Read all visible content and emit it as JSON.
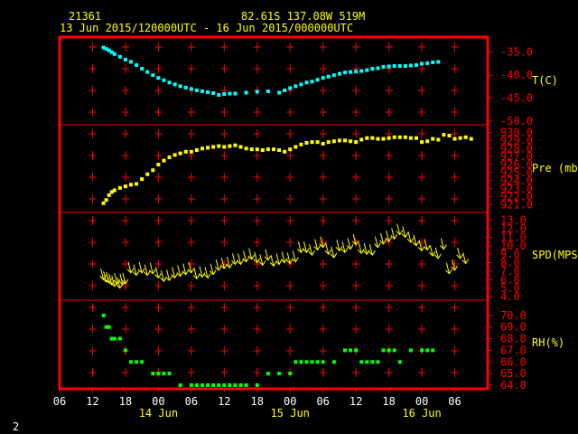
{
  "header": {
    "station_id": "21361",
    "location": "82.61S  137.08W   519M",
    "period": "13 Jun 2015/120000UTC - 16 Jun 2015/000000UTC"
  },
  "footer_number": "2",
  "colors": {
    "frame": "#ff0000",
    "temperature": "#00ffff",
    "pressure": "#ffff00",
    "wind": "#ffff00",
    "humidity": "#00ff00",
    "labels": "#ffff00",
    "axis_labels": "#ff0000"
  },
  "chart_data": {
    "type": "scatter",
    "x_axis": {
      "unit": "hours from 13 Jun 2015 06 UTC",
      "range": [
        0,
        78
      ],
      "tick_labels": [
        "06",
        "12",
        "18",
        "00",
        "06",
        "12",
        "18",
        "00",
        "06",
        "12",
        "18",
        "00",
        "06"
      ],
      "date_labels": [
        {
          "label": "14 Jun",
          "at_hour": 18
        },
        {
          "label": "15 Jun",
          "at_hour": 42
        },
        {
          "label": "16 Jun",
          "at_hour": 66
        }
      ]
    },
    "panels": [
      {
        "name": "temperature",
        "label": "T(C)",
        "range": [
          -50,
          -32.5
        ],
        "ticks": [
          "-35.0",
          "-40.0",
          "-45.0",
          "-50.0"
        ],
        "tick_values": [
          -35,
          -40,
          -45,
          -50
        ],
        "points": [
          [
            8,
            -34
          ],
          [
            8.5,
            -34.3
          ],
          [
            9,
            -34.6
          ],
          [
            9.5,
            -35
          ],
          [
            10,
            -35.4
          ],
          [
            11,
            -36
          ],
          [
            12,
            -36.6
          ],
          [
            13,
            -37.1
          ],
          [
            14,
            -37.8
          ],
          [
            15,
            -38.6
          ],
          [
            16,
            -39.3
          ],
          [
            17,
            -40
          ],
          [
            18,
            -40.6
          ],
          [
            19,
            -41.1
          ],
          [
            20,
            -41.6
          ],
          [
            21,
            -42
          ],
          [
            22,
            -42.4
          ],
          [
            23,
            -42.7
          ],
          [
            24,
            -43
          ],
          [
            25,
            -43.3
          ],
          [
            26,
            -43.5
          ],
          [
            27,
            -43.7
          ],
          [
            28,
            -43.9
          ],
          [
            29,
            -44.3
          ],
          [
            30,
            -44.1
          ],
          [
            31,
            -44
          ],
          [
            32,
            -44
          ],
          [
            34,
            -43.8
          ],
          [
            36,
            -43.6
          ],
          [
            38,
            -43.5
          ],
          [
            40,
            -43.8
          ],
          [
            41,
            -43.3
          ],
          [
            42,
            -42.8
          ],
          [
            43,
            -42.4
          ],
          [
            44,
            -42
          ],
          [
            45,
            -41.6
          ],
          [
            46,
            -41.4
          ],
          [
            47,
            -41
          ],
          [
            48,
            -40.6
          ],
          [
            49,
            -40.3
          ],
          [
            50,
            -40
          ],
          [
            51,
            -39.7
          ],
          [
            52,
            -39.4
          ],
          [
            53,
            -39.3
          ],
          [
            54,
            -39.2
          ],
          [
            55,
            -39.1
          ],
          [
            56,
            -38.9
          ],
          [
            57,
            -38.6
          ],
          [
            58,
            -38.5
          ],
          [
            59,
            -38.2
          ],
          [
            60,
            -38.1
          ],
          [
            61,
            -38
          ],
          [
            62,
            -38
          ],
          [
            63,
            -38
          ],
          [
            64,
            -37.9
          ],
          [
            65,
            -37.8
          ],
          [
            66,
            -37.5
          ],
          [
            67,
            -37.4
          ],
          [
            68,
            -37.2
          ],
          [
            69,
            -37.1
          ]
        ]
      },
      {
        "name": "pressure",
        "label": "Pre (mb)",
        "range": [
          920.5,
          930.5
        ],
        "ticks": [
          "930.0",
          "929.0",
          "928.0",
          "927.0",
          "926.0",
          "925.0",
          "924.0",
          "923.0",
          "922.0",
          "921.0"
        ],
        "tick_values": [
          930,
          929,
          928,
          927,
          926,
          925,
          924,
          923,
          922,
          921
        ],
        "points": [
          [
            8,
            921.2
          ],
          [
            8.5,
            921.6
          ],
          [
            9,
            922.2
          ],
          [
            9.5,
            922.6
          ],
          [
            10,
            922.8
          ],
          [
            11,
            923.1
          ],
          [
            12,
            923.3
          ],
          [
            13,
            923.5
          ],
          [
            14,
            923.6
          ],
          [
            15,
            924.2
          ],
          [
            16,
            924.8
          ],
          [
            17,
            925.3
          ],
          [
            18,
            926.0
          ],
          [
            19,
            926.5
          ],
          [
            20,
            926.9
          ],
          [
            21,
            927.2
          ],
          [
            22,
            927.4
          ],
          [
            23,
            927.6
          ],
          [
            24,
            927.6
          ],
          [
            25,
            927.8
          ],
          [
            26,
            928.0
          ],
          [
            27,
            928.1
          ],
          [
            28,
            928.2
          ],
          [
            29,
            928.3
          ],
          [
            30,
            928.2
          ],
          [
            31,
            928.3
          ],
          [
            32,
            928.4
          ],
          [
            33,
            928.2
          ],
          [
            34,
            928.0
          ],
          [
            35,
            927.9
          ],
          [
            36,
            927.9
          ],
          [
            37,
            927.8
          ],
          [
            38,
            927.9
          ],
          [
            39,
            927.9
          ],
          [
            40,
            927.8
          ],
          [
            41,
            927.6
          ],
          [
            42,
            927.9
          ],
          [
            43,
            928.2
          ],
          [
            44,
            928.5
          ],
          [
            45,
            928.7
          ],
          [
            46,
            928.8
          ],
          [
            47,
            928.8
          ],
          [
            48,
            928.6
          ],
          [
            49,
            928.8
          ],
          [
            50,
            928.9
          ],
          [
            51,
            929.0
          ],
          [
            52,
            929.0
          ],
          [
            53,
            928.9
          ],
          [
            54,
            928.8
          ],
          [
            55,
            929.1
          ],
          [
            56,
            929.3
          ],
          [
            57,
            929.3
          ],
          [
            58,
            929.2
          ],
          [
            59,
            929.2
          ],
          [
            60,
            929.3
          ],
          [
            61,
            929.4
          ],
          [
            62,
            929.4
          ],
          [
            63,
            929.4
          ],
          [
            64,
            929.3
          ],
          [
            65,
            929.3
          ],
          [
            66,
            928.8
          ],
          [
            67,
            928.9
          ],
          [
            68,
            929.2
          ],
          [
            69,
            929.1
          ],
          [
            70,
            929.7
          ],
          [
            71,
            929.6
          ],
          [
            72,
            929.2
          ],
          [
            73,
            929.3
          ],
          [
            74,
            929.4
          ],
          [
            75,
            929.2
          ]
        ]
      },
      {
        "name": "wind_speed",
        "label": "SPD(MPS)",
        "range": [
          4,
          13.5
        ],
        "ticks": [
          "13.0",
          "12.0",
          "11.0",
          "10.0",
          "9.0",
          "8.0",
          "7.0",
          "6.0",
          "5.0",
          "4.0"
        ],
        "tick_values": [
          13,
          12,
          11,
          10,
          9,
          8,
          7,
          6,
          5,
          4
        ],
        "points": [
          [
            8,
            6
          ],
          [
            8.5,
            5.7
          ],
          [
            9,
            5.6
          ],
          [
            9.5,
            5.4
          ],
          [
            10,
            5.2
          ],
          [
            10.5,
            5.5
          ],
          [
            11,
            5.0
          ],
          [
            11.5,
            5.4
          ],
          [
            12,
            5.5
          ],
          [
            13,
            6.8
          ],
          [
            14,
            6.5
          ],
          [
            15,
            6.8
          ],
          [
            16,
            6.5
          ],
          [
            17,
            6.7
          ],
          [
            18,
            6.2
          ],
          [
            19,
            5.8
          ],
          [
            20,
            5.9
          ],
          [
            21,
            6.2
          ],
          [
            22,
            6.4
          ],
          [
            23,
            6.6
          ],
          [
            24,
            6.8
          ],
          [
            25,
            6.1
          ],
          [
            26,
            6.3
          ],
          [
            27,
            6.2
          ],
          [
            28,
            6.6
          ],
          [
            29,
            7.1
          ],
          [
            30,
            7.3
          ],
          [
            31,
            7.4
          ],
          [
            32,
            7.8
          ],
          [
            33,
            7.8
          ],
          [
            34,
            8.1
          ],
          [
            35,
            8.4
          ],
          [
            36,
            8.0
          ],
          [
            37,
            7.7
          ],
          [
            38,
            8.3
          ],
          [
            39,
            7.6
          ],
          [
            40,
            7.8
          ],
          [
            41,
            8.0
          ],
          [
            42,
            7.9
          ],
          [
            43,
            8.1
          ],
          [
            44,
            9.2
          ],
          [
            45,
            9.2
          ],
          [
            46,
            8.9
          ],
          [
            47,
            9.5
          ],
          [
            48,
            9.8
          ],
          [
            49,
            9.0
          ],
          [
            50,
            8.6
          ],
          [
            51,
            9.4
          ],
          [
            52,
            9.2
          ],
          [
            53,
            9.6
          ],
          [
            54,
            10.1
          ],
          [
            55,
            9.1
          ],
          [
            56,
            9.0
          ],
          [
            57,
            8.9
          ],
          [
            58,
            9.8
          ],
          [
            59,
            10.2
          ],
          [
            60,
            10.5
          ],
          [
            61,
            10.8
          ],
          [
            62,
            11.3
          ],
          [
            63,
            11.0
          ],
          [
            64,
            10.4
          ],
          [
            65,
            10.0
          ],
          [
            66,
            9.4
          ],
          [
            67,
            9.5
          ],
          [
            68,
            8.8
          ],
          [
            69,
            8.5
          ],
          [
            70,
            9.6
          ],
          [
            71,
            6.7
          ],
          [
            72,
            7.1
          ],
          [
            73,
            8.5
          ],
          [
            74,
            7.9
          ]
        ]
      },
      {
        "name": "relative_humidity",
        "label": "RH(%)",
        "range": [
          64,
          71
        ],
        "ticks": [
          "70.0",
          "69.0",
          "68.0",
          "67.0",
          "66.0",
          "65.0",
          "64.0"
        ],
        "tick_values": [
          70,
          69,
          68,
          67,
          66,
          65,
          64
        ],
        "points": [
          [
            8,
            70
          ],
          [
            8.5,
            69
          ],
          [
            9,
            69
          ],
          [
            9.5,
            68
          ],
          [
            10,
            68
          ],
          [
            11,
            68
          ],
          [
            12,
            67
          ],
          [
            13,
            66
          ],
          [
            14,
            66
          ],
          [
            15,
            66
          ],
          [
            17,
            65
          ],
          [
            18,
            65
          ],
          [
            19,
            65
          ],
          [
            20,
            65
          ],
          [
            22,
            64
          ],
          [
            24,
            64
          ],
          [
            25,
            64
          ],
          [
            26,
            64
          ],
          [
            27,
            64
          ],
          [
            28,
            64
          ],
          [
            29,
            64
          ],
          [
            30,
            64
          ],
          [
            31,
            64
          ],
          [
            32,
            64
          ],
          [
            33,
            64
          ],
          [
            34,
            64
          ],
          [
            36,
            64
          ],
          [
            38,
            65
          ],
          [
            40,
            65
          ],
          [
            42,
            65
          ],
          [
            43,
            66
          ],
          [
            44,
            66
          ],
          [
            45,
            66
          ],
          [
            46,
            66
          ],
          [
            47,
            66
          ],
          [
            48,
            66
          ],
          [
            50,
            66
          ],
          [
            52,
            67
          ],
          [
            53,
            67
          ],
          [
            54,
            67
          ],
          [
            55,
            66
          ],
          [
            56,
            66
          ],
          [
            57,
            66
          ],
          [
            58,
            66
          ],
          [
            59,
            67
          ],
          [
            60,
            67
          ],
          [
            61,
            67
          ],
          [
            62,
            66
          ],
          [
            64,
            67
          ],
          [
            66,
            67
          ],
          [
            67,
            67
          ],
          [
            68,
            67
          ]
        ]
      }
    ]
  }
}
